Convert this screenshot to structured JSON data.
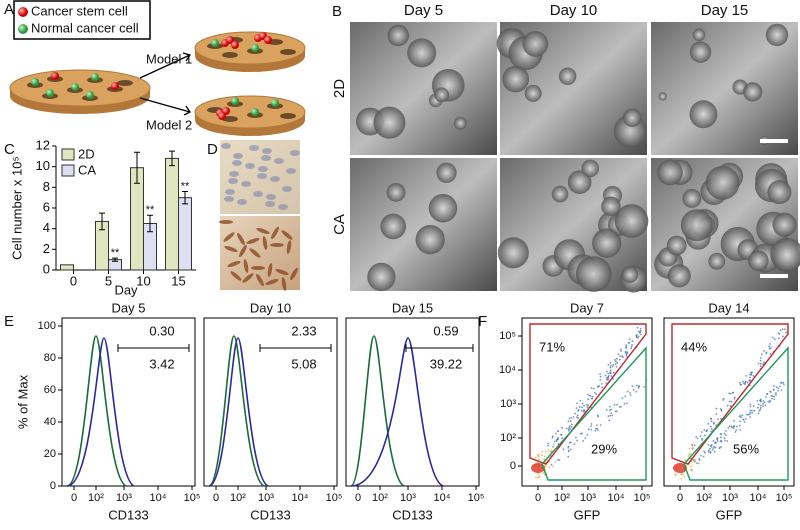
{
  "figure": {
    "panel_labels": [
      "A",
      "B",
      "C",
      "D",
      "E",
      "F"
    ],
    "panel_a": {
      "legend": [
        "Cancer stem cell",
        "Normal cancer cell"
      ],
      "models": [
        "Model 1",
        "Model 2"
      ]
    },
    "panel_b": {
      "columns": [
        "Day 5",
        "Day 10",
        "Day 15"
      ],
      "rows": [
        "2D",
        "CA"
      ]
    },
    "panel_e": {
      "ylabel": "% of Max",
      "yticks": [
        "0",
        "20",
        "40",
        "60",
        "80",
        "100"
      ],
      "xticks": [
        "0",
        "10²",
        "10³",
        "10⁴",
        "10⁵"
      ],
      "xlabel": "CD133",
      "plots": [
        {
          "title": "Day 5",
          "green": "0.30",
          "blue": "3.42"
        },
        {
          "title": "Day 10",
          "green": "2.33",
          "blue": "5.08"
        },
        {
          "title": "Day 15",
          "green": "0.59",
          "blue": "39.22"
        }
      ]
    },
    "panel_f": {
      "yticks": [
        "0",
        "10²",
        "10³",
        "10⁴",
        "10⁵"
      ],
      "xticks": [
        "0",
        "10²",
        "10³",
        "10⁴",
        "10⁵"
      ],
      "xlabel": "GFP",
      "plots": [
        {
          "title": "Day 7",
          "upper": "71%",
          "lower": "29%"
        },
        {
          "title": "Day 14",
          "upper": "44%",
          "lower": "56%"
        }
      ]
    }
  },
  "chart_data": {
    "type": "bar",
    "xlabel": "Day",
    "ylabel": "Cell number x 10⁵",
    "categories": [
      "0",
      "5",
      "10",
      "15"
    ],
    "series": [
      {
        "name": "2D",
        "color": "#dfe6c0",
        "values": [
          0.5,
          4.7,
          9.9,
          10.8
        ],
        "errors": [
          0,
          0.8,
          1.5,
          0.7
        ]
      },
      {
        "name": "CA",
        "color": "#dde0f2",
        "values": [
          null,
          1.0,
          4.5,
          7.0
        ],
        "errors": [
          null,
          0.15,
          0.8,
          0.6
        ]
      }
    ],
    "significance": [
      null,
      "**",
      "**",
      "**"
    ],
    "ylim": [
      0,
      12
    ],
    "yticks": [
      0,
      2,
      4,
      6,
      8,
      10,
      12
    ]
  }
}
